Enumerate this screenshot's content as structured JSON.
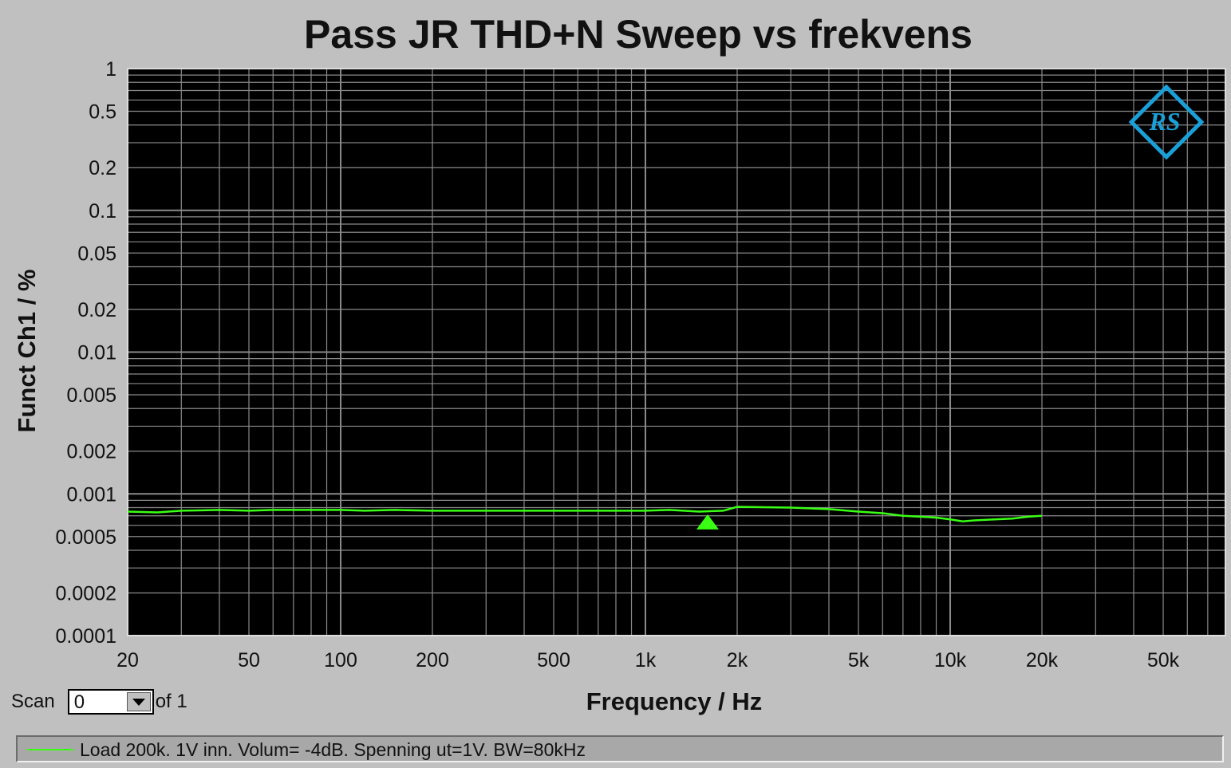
{
  "chart_data": {
    "type": "line",
    "title": "Pass JR THD+N Sweep vs frekvens",
    "xlabel": "Frequency / Hz",
    "ylabel": "Funct Ch1 / %",
    "xscale": "log",
    "yscale": "log",
    "xlim": [
      20,
      80000
    ],
    "ylim": [
      0.0001,
      1
    ],
    "x_ticks": [
      20,
      50,
      100,
      200,
      500,
      1000,
      2000,
      5000,
      10000,
      20000,
      50000
    ],
    "x_tick_labels": [
      "20",
      "50",
      "100",
      "200",
      "500",
      "1k",
      "2k",
      "5k",
      "10k",
      "20k",
      "50k"
    ],
    "y_ticks": [
      1,
      0.5,
      0.2,
      0.1,
      0.05,
      0.02,
      0.01,
      0.005,
      0.002,
      0.001,
      0.0005,
      0.0002,
      0.0001
    ],
    "y_tick_labels": [
      "1",
      "0.5",
      "0.2",
      "0.1",
      "0.05",
      "0.02",
      "0.01",
      "0.005",
      "0.002",
      "0.001",
      "0.0005",
      "0.0002",
      "0.0001"
    ],
    "grid": true,
    "background": "#000000",
    "grid_color": "#8a8a8a",
    "series": [
      {
        "name": "Load 200k. 1V inn. Volum= -4dB. Spenning ut=1V. BW=80kHz",
        "color": "#39ff14",
        "x": [
          20,
          25,
          30,
          40,
          50,
          60,
          80,
          100,
          120,
          150,
          200,
          300,
          500,
          800,
          1000,
          1200,
          1500,
          1800,
          2000,
          3000,
          4000,
          5000,
          6000,
          7000,
          8000,
          9000,
          10000,
          11000,
          12000,
          14000,
          16000,
          18000,
          20000
        ],
        "y": [
          0.00075,
          0.00074,
          0.00076,
          0.00077,
          0.00076,
          0.00077,
          0.00077,
          0.00077,
          0.00076,
          0.00077,
          0.00076,
          0.00076,
          0.00076,
          0.00076,
          0.00076,
          0.00077,
          0.00075,
          0.00076,
          0.00081,
          0.0008,
          0.00078,
          0.00075,
          0.00073,
          0.0007,
          0.00069,
          0.00068,
          0.00066,
          0.00064,
          0.00065,
          0.00066,
          0.00067,
          0.00069,
          0.0007
        ]
      }
    ],
    "markers": [
      {
        "shape": "triangle-up",
        "x": 1600,
        "y": 0.00063,
        "color": "#39ff14"
      }
    ]
  },
  "logo": {
    "name": "rohde-schwarz-logo",
    "text": "RS",
    "color": "#1aa0d8"
  },
  "scan": {
    "label": "Scan",
    "value": "0",
    "of_label": "of 1"
  },
  "legend": {
    "entry": "Load 200k. 1V inn. Volum= -4dB. Spenning ut=1V. BW=80kHz"
  }
}
